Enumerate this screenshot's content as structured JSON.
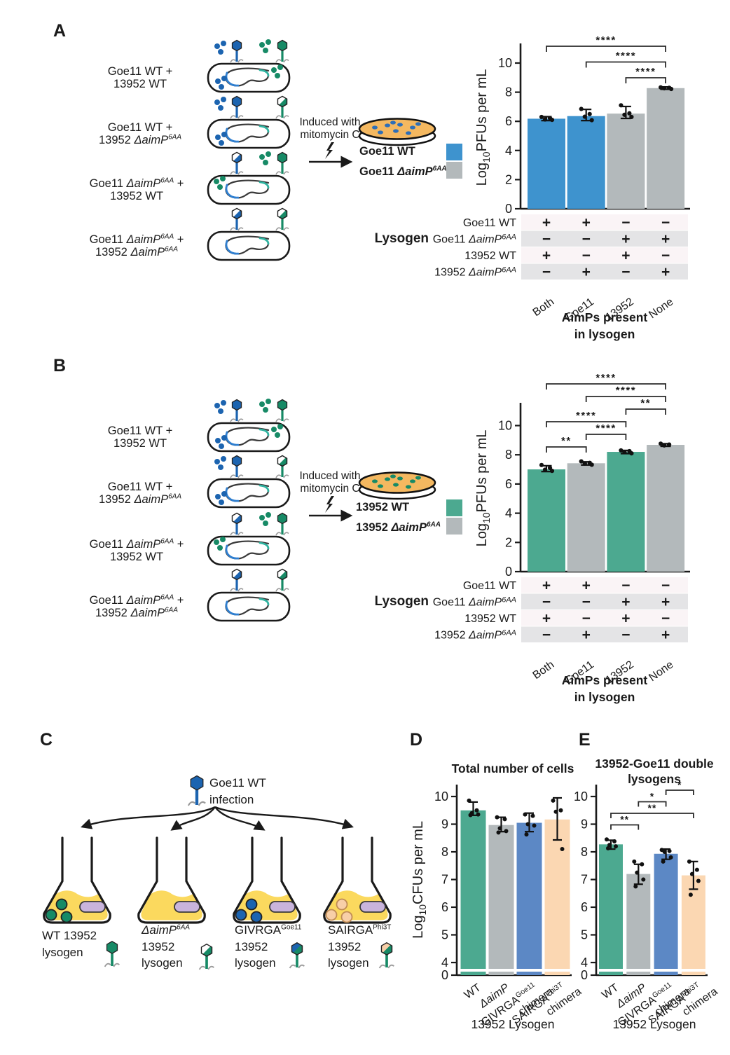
{
  "figure": {
    "colors": {
      "blue_bar": "#3E93CE",
      "teal_bar": "#4CA990",
      "gray_bar": "#B3B9BB",
      "chimera_blue": "#5C88C5",
      "peach_bar": "#FBD7B2",
      "phage_blue": "#1C64B0",
      "phage_green": "#178A66",
      "plate_fill": "#F4B860",
      "flask_yellow": "#FBD95E",
      "plasmid_lavender": "#C9B4DC",
      "peach_dot": "#F8CFA8",
      "table_row_light": "#FAF4F6",
      "table_row_dark": "#E4E4E6",
      "loop_blue": "#2F7FD0",
      "loop_teal": "#2FB3A0"
    },
    "panel_a": {
      "label": "A",
      "rows": [
        {
          "l1": {
            "pre": "Goe11 WT +"
          },
          "l2": {
            "pre": "13952 WT"
          },
          "left_phage": {
            "color": "blue",
            "half": false,
            "dots": true
          },
          "right_phage": {
            "color": "green",
            "half": false,
            "dots": true
          },
          "cell_dots": [
            {
              "color": "blue",
              "pos": "bl"
            },
            {
              "color": "green",
              "pos": "tr"
            }
          ]
        },
        {
          "l1": {
            "pre": "Goe11 WT +"
          },
          "l2": {
            "pre": "13952 ",
            "it": "ΔaimP",
            "sup": "6AA"
          },
          "left_phage": {
            "color": "blue",
            "half": false,
            "dots": true
          },
          "right_phage": {
            "color": "green",
            "half": true,
            "dots": false
          },
          "cell_dots": [
            {
              "color": "blue",
              "pos": "bl"
            }
          ]
        },
        {
          "l1": {
            "pre": "Goe11 ",
            "it": "ΔaimP",
            "sup": "6AA",
            "post": " +"
          },
          "l2": {
            "pre": "13952 WT"
          },
          "left_phage": {
            "color": "blue",
            "half": true,
            "dots": false
          },
          "right_phage": {
            "color": "green",
            "half": false,
            "dots": true
          },
          "cell_dots": [
            {
              "color": "green",
              "pos": "tl"
            }
          ]
        },
        {
          "l1": {
            "pre": "Goe11 ",
            "it": "ΔaimP",
            "sup": "6AA",
            "post": " +"
          },
          "l2": {
            "pre": "13952 ",
            "it": "ΔaimP",
            "sup": "6AA"
          },
          "left_phage": {
            "color": "blue",
            "half": true,
            "dots": false
          },
          "right_phage": {
            "color": "green",
            "half": true,
            "dots": false
          },
          "cell_dots": []
        }
      ],
      "induced": {
        "l1": "Induced with",
        "l2": "mitomycin C"
      },
      "plate_dots": "blue",
      "legend": [
        {
          "pre": "Goe11 WT",
          "color": "#3E93CE"
        },
        {
          "pre": "Goe11 ",
          "it": "ΔaimP",
          "sup": "6AA",
          "color": "#B3B9BB"
        }
      ],
      "chart_data": {
        "type": "bar",
        "ylabel": {
          "pre": "Log",
          "sub": "10",
          "post": "PFUs per mL"
        },
        "categories": [
          "Both",
          "Goe11",
          "13952",
          "None"
        ],
        "values": [
          6.18,
          6.36,
          6.53,
          8.28
        ],
        "bar_colors": [
          "#3E93CE",
          "#3E93CE",
          "#B3B9BB",
          "#B3B9BB"
        ],
        "errors": [
          [
            6.05,
            6.32
          ],
          [
            6.05,
            6.82
          ],
          [
            6.2,
            7.02
          ],
          [
            8.2,
            8.36
          ]
        ],
        "points": [
          [
            6.3,
            6.22,
            6.13,
            6.1
          ],
          [
            6.85,
            6.5,
            6.32,
            6.08
          ],
          [
            7.1,
            6.55,
            6.45,
            6.3
          ],
          [
            8.33,
            8.3,
            8.27,
            8.22
          ]
        ],
        "yticks": [
          0,
          2,
          4,
          6,
          8,
          10
        ],
        "ylim": [
          0,
          11.5
        ],
        "grid": false,
        "significance": [
          {
            "from": 0,
            "to": 3,
            "label": "****"
          },
          {
            "from": 1,
            "to": 3,
            "label": "****"
          },
          {
            "from": 2,
            "to": 3,
            "label": "****"
          }
        ],
        "xlabel_lines": [
          "AimPs present",
          "in lysogen"
        ],
        "table": {
          "header": "Lysogen",
          "rows": [
            {
              "label": {
                "pre": "Goe11 WT"
              },
              "values": [
                "+",
                "+",
                "−",
                "−"
              ]
            },
            {
              "label": {
                "pre": "Goe11 ",
                "it": "ΔaimP",
                "sup": "6AA"
              },
              "values": [
                "−",
                "−",
                "+",
                "+"
              ]
            },
            {
              "label": {
                "pre": "13952 WT"
              },
              "values": [
                "+",
                "−",
                "+",
                "−"
              ]
            },
            {
              "label": {
                "pre": "13952 ",
                "it": "ΔaimP",
                "sup": "6AA"
              },
              "values": [
                "−",
                "+",
                "−",
                "+"
              ]
            }
          ]
        }
      }
    },
    "panel_b": {
      "label": "B",
      "rows": [
        {
          "l1": {
            "pre": "Goe11 WT +"
          },
          "l2": {
            "pre": "13952 WT"
          },
          "left_phage": {
            "color": "blue",
            "half": false,
            "dots": true
          },
          "right_phage": {
            "color": "green",
            "half": false,
            "dots": true
          },
          "cell_dots": [
            {
              "color": "blue",
              "pos": "bl"
            },
            {
              "color": "green",
              "pos": "tr"
            }
          ]
        },
        {
          "l1": {
            "pre": "Goe11 WT +"
          },
          "l2": {
            "pre": "13952 ",
            "it": "ΔaimP",
            "sup": "6AA"
          },
          "left_phage": {
            "color": "blue",
            "half": false,
            "dots": true
          },
          "right_phage": {
            "color": "green",
            "half": true,
            "dots": false
          },
          "cell_dots": [
            {
              "color": "blue",
              "pos": "bl"
            }
          ]
        },
        {
          "l1": {
            "pre": "Goe11 ",
            "it": "ΔaimP",
            "sup": "6AA",
            "post": " +"
          },
          "l2": {
            "pre": "13952 WT"
          },
          "left_phage": {
            "color": "blue",
            "half": true,
            "dots": false
          },
          "right_phage": {
            "color": "green",
            "half": false,
            "dots": true
          },
          "cell_dots": [
            {
              "color": "green",
              "pos": "tl"
            }
          ]
        },
        {
          "l1": {
            "pre": "Goe11 ",
            "it": "ΔaimP",
            "sup": "6AA",
            "post": " +"
          },
          "l2": {
            "pre": "13952 ",
            "it": "ΔaimP",
            "sup": "6AA"
          },
          "left_phage": {
            "color": "blue",
            "half": true,
            "dots": false
          },
          "right_phage": {
            "color": "green",
            "half": true,
            "dots": false
          },
          "cell_dots": []
        }
      ],
      "induced": {
        "l1": "Induced with",
        "l2": "mitomycin C"
      },
      "plate_dots": "green",
      "legend": [
        {
          "pre": "13952 WT",
          "color": "#4CA990"
        },
        {
          "pre": "13952 ",
          "it": "ΔaimP",
          "sup": "6AA",
          "color": "#B3B9BB"
        }
      ],
      "chart_data": {
        "type": "bar",
        "ylabel": {
          "pre": "Log",
          "sub": "10",
          "post": "PFUs per mL"
        },
        "categories": [
          "Both",
          "Goe11",
          "13952",
          "None"
        ],
        "values": [
          7.0,
          7.42,
          8.2,
          8.68
        ],
        "bar_colors": [
          "#4CA990",
          "#B3B9BB",
          "#4CA990",
          "#B3B9BB"
        ],
        "errors": [
          [
            6.85,
            7.25
          ],
          [
            7.3,
            7.52
          ],
          [
            8.08,
            8.3
          ],
          [
            8.58,
            8.76
          ]
        ],
        "points": [
          [
            7.3,
            7.1,
            6.98,
            6.9
          ],
          [
            7.55,
            7.45,
            7.4,
            7.32
          ],
          [
            8.3,
            8.25,
            8.18,
            8.1
          ],
          [
            8.76,
            8.7,
            8.64
          ]
        ],
        "yticks": [
          0,
          2,
          4,
          6,
          8,
          10
        ],
        "ylim": [
          0,
          11.6
        ],
        "grid": false,
        "significance": [
          {
            "from": 0,
            "to": 3,
            "label": "****"
          },
          {
            "from": 1,
            "to": 3,
            "label": "****"
          },
          {
            "from": 2,
            "to": 3,
            "label": "**"
          },
          {
            "from": 0,
            "to": 2,
            "label": "****"
          },
          {
            "from": 1,
            "to": 2,
            "label": "****"
          },
          {
            "from": 0,
            "to": 1,
            "label": "**"
          }
        ],
        "xlabel_lines": [
          "AimPs present",
          "in lysogen"
        ],
        "table": {
          "header": "Lysogen",
          "rows": [
            {
              "label": {
                "pre": "Goe11 WT"
              },
              "values": [
                "+",
                "+",
                "−",
                "−"
              ]
            },
            {
              "label": {
                "pre": "Goe11 ",
                "it": "ΔaimP",
                "sup": "6AA"
              },
              "values": [
                "−",
                "−",
                "+",
                "+"
              ]
            },
            {
              "label": {
                "pre": "13952 WT"
              },
              "values": [
                "+",
                "−",
                "+",
                "−"
              ]
            },
            {
              "label": {
                "pre": "13952 ",
                "it": "ΔaimP",
                "sup": "6AA"
              },
              "values": [
                "−",
                "+",
                "−",
                "+"
              ]
            }
          ]
        }
      }
    },
    "panel_c": {
      "label": "C",
      "infection": {
        "l1": "Goe11 WT",
        "l2": "infection"
      },
      "flasks": [
        {
          "lines": [
            {
              "pre": "WT 13952"
            },
            {
              "pre": "lysogen"
            }
          ],
          "dots": "green",
          "phage_half": null
        },
        {
          "lines": [
            {
              "it": "ΔaimP",
              "sup": "6AA"
            },
            {
              "pre": "13952"
            },
            {
              "pre": "lysogen"
            }
          ],
          "dots": null,
          "phage_half": "white"
        },
        {
          "lines": [
            {
              "pre": "GIVRGA",
              "sup": "Goe11"
            },
            {
              "pre": "13952"
            },
            {
              "pre": "lysogen"
            }
          ],
          "dots": "blue",
          "phage_half": "blue"
        },
        {
          "lines": [
            {
              "pre": "SAIRGA",
              "sup": "Phi3T"
            },
            {
              "pre": "13952"
            },
            {
              "pre": "lysogen"
            }
          ],
          "dots": "peach",
          "phage_half": "peach"
        }
      ]
    },
    "panel_d": {
      "label": "D",
      "chart_data": {
        "type": "bar",
        "title_lines": [
          "Total number of cells"
        ],
        "ylabel": {
          "pre": "Log",
          "sub": "10",
          "post": "CFUs per mL"
        },
        "categories": [
          {
            "pre": "WT"
          },
          {
            "it": "ΔaimP"
          },
          {
            "pre": "GIVRGA",
            "sup": "Goe11",
            "line2": "chimera"
          },
          {
            "pre": "SAIRGA",
            "sup": "Phi3T",
            "line2": "chimera"
          }
        ],
        "values": [
          9.5,
          8.97,
          9.05,
          9.17
        ],
        "bar_colors": [
          "#4CA990",
          "#B3B9BB",
          "#5C88C5",
          "#FBD7B2"
        ],
        "errors": [
          [
            9.32,
            9.8
          ],
          [
            8.73,
            9.25
          ],
          [
            8.73,
            9.4
          ],
          [
            8.43,
            9.95
          ]
        ],
        "points": [
          [
            9.85,
            9.5,
            9.4,
            9.35,
            9.33
          ],
          [
            9.25,
            9.18,
            8.85,
            8.75,
            8.7
          ],
          [
            9.35,
            9.3,
            9.0,
            8.95,
            8.63
          ],
          [
            9.85,
            9.5,
            9.45,
            8.1
          ]
        ],
        "yticks": [
          0,
          4,
          5,
          6,
          7,
          8,
          9,
          10
        ],
        "ylim": [
          0,
          10.6
        ],
        "y_break": [
          0,
          4
        ],
        "grid": false,
        "significance": [],
        "xlabel": "13952 Lysogen"
      }
    },
    "panel_e": {
      "label": "E",
      "chart_data": {
        "type": "bar",
        "title_lines": [
          "13952-Goe11 double",
          "lysogens"
        ],
        "categories": [
          {
            "pre": "WT"
          },
          {
            "it": "ΔaimP"
          },
          {
            "pre": "GIVRGA",
            "sup": "Goe11",
            "line2": "chimera"
          },
          {
            "pre": "SAIRGA",
            "sup": "Phi3T",
            "line2": "chimera"
          }
        ],
        "values": [
          8.27,
          7.2,
          7.93,
          7.15
        ],
        "bar_colors": [
          "#4CA990",
          "#B3B9BB",
          "#5C88C5",
          "#FBD7B2"
        ],
        "errors": [
          [
            8.1,
            8.42
          ],
          [
            6.83,
            7.55
          ],
          [
            7.73,
            8.1
          ],
          [
            6.65,
            7.65
          ]
        ],
        "points": [
          [
            8.45,
            8.38,
            8.25,
            8.2,
            8.13
          ],
          [
            7.65,
            7.55,
            7.25,
            7.0,
            6.75
          ],
          [
            8.07,
            8.03,
            8.0,
            7.8,
            7.65
          ],
          [
            7.65,
            7.35,
            7.2,
            6.95,
            6.45
          ]
        ],
        "yticks": [
          0,
          4,
          5,
          6,
          7,
          8,
          9,
          10
        ],
        "ylim": [
          0,
          10.6
        ],
        "y_break": [
          0,
          4
        ],
        "grid": false,
        "significance": [
          {
            "from": 2,
            "to": 3,
            "label": "*"
          },
          {
            "from": 1,
            "to": 2,
            "label": "*"
          },
          {
            "from": 0,
            "to": 3,
            "label": "**"
          },
          {
            "from": 0,
            "to": 1,
            "label": "**"
          }
        ],
        "xlabel": "13952 Lysogen"
      }
    }
  }
}
